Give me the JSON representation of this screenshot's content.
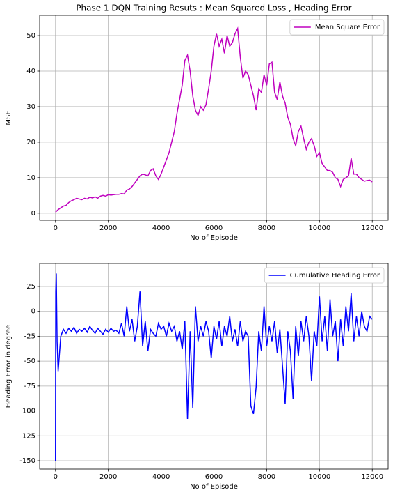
{
  "chart_data": [
    {
      "type": "line",
      "title": "Phase 1 DQN Training Resuts : Mean Squared Loss , Heading Error",
      "x_label": "No of Episode",
      "y_label": "MSE",
      "xlim": [
        -600,
        12600
      ],
      "ylim": [
        -2,
        55.7
      ],
      "xticks": [
        0,
        2000,
        4000,
        6000,
        8000,
        10000,
        12000
      ],
      "yticks": [
        0,
        10,
        20,
        30,
        40,
        50
      ],
      "grid": true,
      "legend": "upper right",
      "x": [
        0,
        100,
        200,
        300,
        400,
        500,
        600,
        700,
        800,
        900,
        1000,
        1100,
        1200,
        1300,
        1400,
        1500,
        1600,
        1700,
        1800,
        1900,
        2000,
        2100,
        2200,
        2300,
        2400,
        2500,
        2600,
        2700,
        2800,
        2900,
        3000,
        3100,
        3200,
        3300,
        3400,
        3500,
        3600,
        3700,
        3800,
        3900,
        4000,
        4100,
        4200,
        4300,
        4400,
        4500,
        4600,
        4700,
        4800,
        4900,
        5000,
        5100,
        5200,
        5300,
        5400,
        5500,
        5600,
        5700,
        5800,
        5900,
        6000,
        6100,
        6200,
        6300,
        6400,
        6500,
        6600,
        6700,
        6800,
        6900,
        7000,
        7100,
        7200,
        7300,
        7400,
        7500,
        7600,
        7700,
        7800,
        7900,
        8000,
        8100,
        8200,
        8300,
        8400,
        8500,
        8600,
        8700,
        8800,
        8900,
        9000,
        9100,
        9200,
        9300,
        9400,
        9500,
        9600,
        9700,
        9800,
        9900,
        10000,
        10100,
        10200,
        10300,
        10400,
        10500,
        10600,
        10700,
        10800,
        10900,
        11000,
        11100,
        11200,
        11300,
        11400,
        11500,
        11600,
        11700,
        11800,
        11900,
        12000
      ],
      "series": [
        {
          "name": "Mean Square Error",
          "color": "#bf00bf",
          "values": [
            0.3,
            1,
            1.5,
            2,
            2.2,
            3,
            3.5,
            3.8,
            4.2,
            4,
            3.8,
            4.2,
            4,
            4.5,
            4.3,
            4.6,
            4.2,
            4.8,
            5,
            4.8,
            5.2,
            5.1,
            5.2,
            5.3,
            5.3,
            5.5,
            5.4,
            6.5,
            6.8,
            7.5,
            8.5,
            9.5,
            10.5,
            11,
            10.8,
            10.5,
            12,
            12.5,
            10.5,
            9.5,
            11,
            13,
            15,
            17,
            20,
            23,
            28,
            32,
            36,
            43,
            44.5,
            40,
            33,
            29,
            27.5,
            30,
            29,
            30.5,
            35,
            40,
            47,
            50.5,
            47,
            49,
            45,
            50,
            47,
            48,
            50.5,
            52,
            44,
            38,
            40,
            39,
            36,
            33,
            29,
            35,
            34,
            39,
            36,
            42,
            42.5,
            34,
            32,
            37,
            33,
            31,
            27,
            25,
            21,
            19,
            23,
            24.5,
            21,
            18,
            20,
            21,
            19,
            16,
            17,
            14,
            13,
            12,
            12,
            11.5,
            10,
            9.5,
            7.5,
            9.5,
            10,
            10.5,
            15.5,
            11,
            11,
            10,
            9.5,
            9,
            9.2,
            9.3,
            8.8
          ]
        }
      ]
    },
    {
      "type": "line",
      "x_label": "No of Episode",
      "y_label": "Heading Error in degree",
      "xlim": [
        -600,
        12600
      ],
      "ylim": [
        -158.4,
        48.1
      ],
      "xticks": [
        0,
        2000,
        4000,
        6000,
        8000,
        10000,
        12000
      ],
      "yticks": [
        -150,
        -125,
        -100,
        -75,
        -50,
        -25,
        0,
        25
      ],
      "grid": true,
      "legend": "upper right",
      "x": [
        0,
        10,
        30,
        60,
        100,
        200,
        300,
        400,
        500,
        600,
        700,
        800,
        900,
        1000,
        1100,
        1200,
        1300,
        1400,
        1500,
        1600,
        1700,
        1800,
        1900,
        2000,
        2100,
        2200,
        2300,
        2400,
        2500,
        2600,
        2700,
        2800,
        2900,
        3000,
        3100,
        3200,
        3300,
        3400,
        3500,
        3600,
        3700,
        3800,
        3900,
        4000,
        4100,
        4200,
        4300,
        4400,
        4500,
        4600,
        4700,
        4800,
        4900,
        5000,
        5100,
        5200,
        5300,
        5400,
        5500,
        5600,
        5700,
        5800,
        5900,
        6000,
        6100,
        6200,
        6300,
        6400,
        6500,
        6600,
        6700,
        6800,
        6900,
        7000,
        7100,
        7200,
        7300,
        7400,
        7500,
        7600,
        7700,
        7800,
        7900,
        8000,
        8100,
        8200,
        8300,
        8400,
        8500,
        8600,
        8700,
        8800,
        8900,
        9000,
        9100,
        9200,
        9300,
        9400,
        9500,
        9600,
        9700,
        9800,
        9900,
        10000,
        10100,
        10200,
        10300,
        10400,
        10500,
        10600,
        10700,
        10800,
        10900,
        11000,
        11100,
        11200,
        11300,
        11400,
        11500,
        11600,
        11700,
        11800,
        11900,
        12000
      ],
      "series": [
        {
          "name": "Cumulative Heading Error",
          "color": "#0000ff",
          "values": [
            -150,
            20,
            38,
            -30,
            -60,
            -25,
            -18,
            -22,
            -17,
            -20,
            -16,
            -22,
            -18,
            -20,
            -17,
            -21,
            -15,
            -19,
            -22,
            -17,
            -20,
            -23,
            -18,
            -21,
            -17,
            -20,
            -19,
            -22,
            -12,
            -25,
            5,
            -20,
            -8,
            -30,
            -15,
            20,
            -35,
            -10,
            -40,
            -18,
            -22,
            -25,
            -12,
            -18,
            -15,
            -25,
            -12,
            -20,
            -15,
            -30,
            -20,
            -38,
            -10,
            -108,
            -20,
            -97,
            5,
            -30,
            -15,
            -25,
            -10,
            -20,
            -47,
            -15,
            -28,
            -10,
            -35,
            -15,
            -25,
            -5,
            -30,
            -18,
            -35,
            -10,
            -30,
            -20,
            -25,
            -95,
            -103,
            -76,
            -20,
            -40,
            5,
            -35,
            -15,
            -30,
            -10,
            -42,
            -18,
            -55,
            -93,
            -20,
            -40,
            -88,
            -15,
            -45,
            -10,
            -30,
            -5,
            -25,
            -70,
            -20,
            -35,
            15,
            -30,
            -5,
            -40,
            12,
            -25,
            -10,
            -50,
            -8,
            -35,
            5,
            -20,
            18,
            -30,
            -5,
            -25,
            0,
            -15,
            -20,
            -5,
            -8
          ]
        }
      ]
    }
  ]
}
